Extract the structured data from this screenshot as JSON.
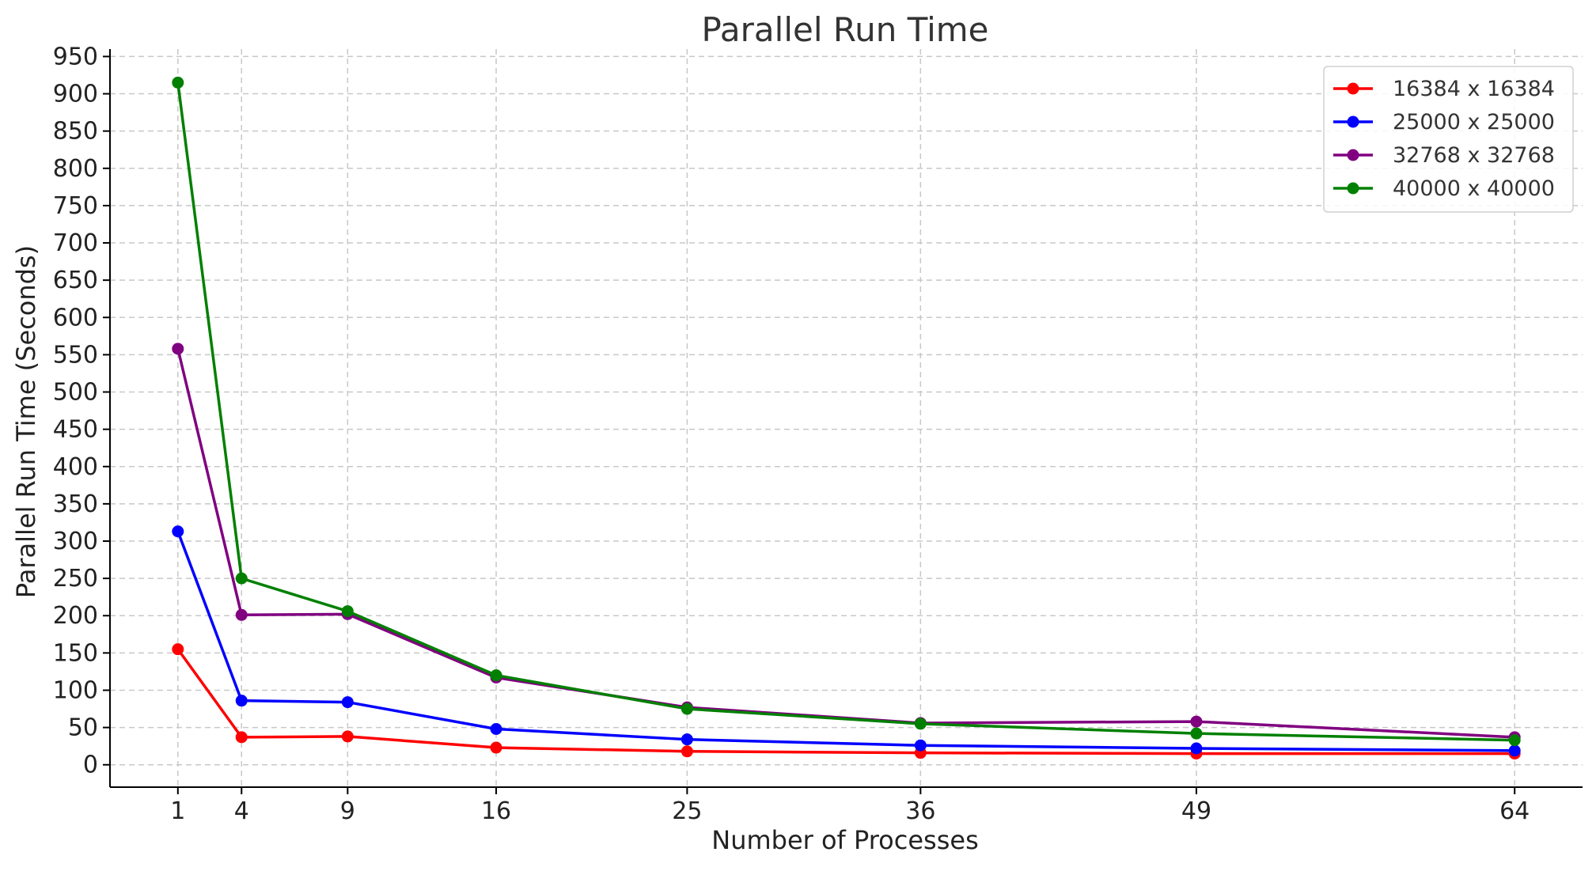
{
  "chart_data": {
    "type": "line",
    "title": "Parallel Run Time",
    "xlabel": "Number of Processes",
    "ylabel": "Parallel Run Time (Seconds)",
    "x": [
      1,
      4,
      9,
      16,
      25,
      36,
      49,
      64
    ],
    "xticks": [
      1,
      4,
      9,
      16,
      25,
      36,
      49,
      64
    ],
    "xlim": [
      -2.2,
      67.2
    ],
    "yticks": [
      0,
      50,
      100,
      150,
      200,
      250,
      300,
      350,
      400,
      450,
      500,
      550,
      600,
      650,
      700,
      750,
      800,
      850,
      900,
      950
    ],
    "ylim": [
      -30,
      960
    ],
    "grid": true,
    "legend_position": "top-right",
    "series": [
      {
        "name": "16384 x 16384",
        "color": "#ff0000",
        "values": [
          155,
          37,
          38,
          23,
          18,
          16,
          15,
          15
        ]
      },
      {
        "name": "25000 x 25000",
        "color": "#0000ff",
        "values": [
          313,
          86,
          84,
          48,
          34,
          26,
          22,
          19
        ]
      },
      {
        "name": "32768 x 32768",
        "color": "#800080",
        "values": [
          558,
          201,
          202,
          117,
          77,
          56,
          58,
          37
        ]
      },
      {
        "name": "40000 x 40000",
        "color": "#008000",
        "values": [
          915,
          250,
          206,
          120,
          75,
          55,
          42,
          33
        ]
      }
    ]
  }
}
